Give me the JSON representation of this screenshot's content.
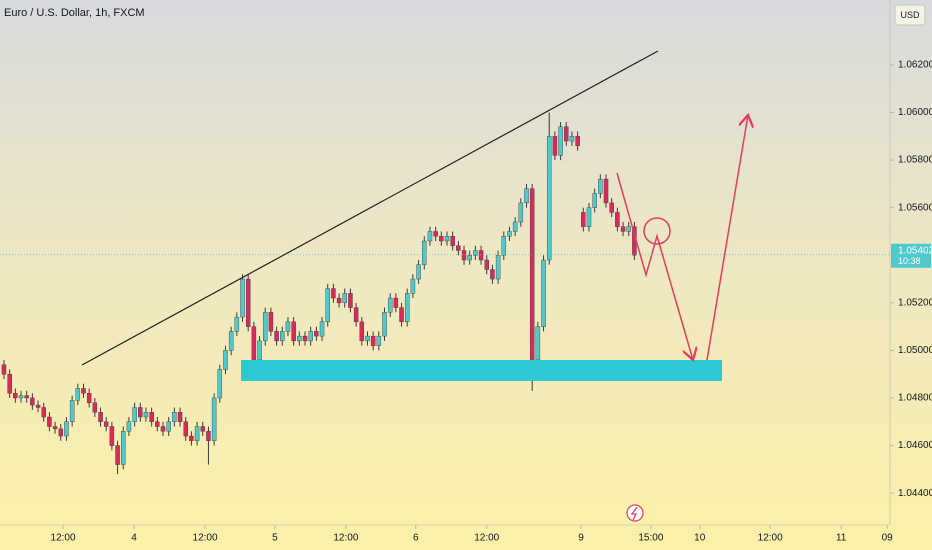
{
  "chart_data": {
    "type": "candlestick",
    "title": "Euro / U.S. Dollar, 1h, FXCM",
    "currency": "USD",
    "last_price": 1.05402,
    "countdown": "10:38",
    "up_color": "#4fc9cc",
    "down_color": "#d92a5e",
    "grid": false,
    "xlim": [
      -0.7,
      156
    ],
    "xticks": [
      {
        "value": 10.4,
        "label": "12:00"
      },
      {
        "value": 22.9,
        "label": "4"
      },
      {
        "value": 35.4,
        "label": "12:00"
      },
      {
        "value": 47.7,
        "label": "5"
      },
      {
        "value": 60.2,
        "label": "12:00"
      },
      {
        "value": 72.5,
        "label": "6"
      },
      {
        "value": 85,
        "label": "12:00"
      },
      {
        "value": 101.6,
        "label": "9"
      },
      {
        "value": 113.9,
        "label": "15:00"
      },
      {
        "value": 122.5,
        "label": "10"
      },
      {
        "value": 134.9,
        "label": "12:00"
      },
      {
        "value": 147.4,
        "label": "11"
      },
      {
        "value": 155.5,
        "label": "09"
      }
    ],
    "ylim": [
      1.04266,
      1.06473
    ],
    "yticks": [
      {
        "value": 1.062,
        "label": "1.06200"
      },
      {
        "value": 1.06,
        "label": "1.06000"
      },
      {
        "value": 1.058,
        "label": "1.05800"
      },
      {
        "value": 1.056,
        "label": "1.05600"
      },
      {
        "value": 1.052,
        "label": "1.05200"
      },
      {
        "value": 1.05,
        "label": "1.05000"
      },
      {
        "value": 1.048,
        "label": "1.04800"
      },
      {
        "value": 1.046,
        "label": "1.04600"
      },
      {
        "value": 1.044,
        "label": "1.04400"
      }
    ],
    "open": [
      1.0494,
      1.049,
      1.0482,
      1.048,
      1.0481,
      1.048,
      1.0477,
      1.0476,
      1.0472,
      1.0468,
      1.0467,
      1.0464,
      1.047,
      1.0479,
      1.0484,
      1.0482,
      1.0478,
      1.0474,
      1.047,
      1.0468,
      1.046,
      1.0452,
      1.0466,
      1.047,
      1.0476,
      1.0472,
      1.0474,
      1.047,
      1.0468,
      1.0466,
      1.047,
      1.0474,
      1.047,
      1.0464,
      1.0462,
      1.0468,
      1.0466,
      1.0462,
      1.048,
      1.0492,
      1.05,
      1.0508,
      1.0514,
      1.053,
      1.051,
      1.0496,
      1.0504,
      1.0516,
      1.0508,
      1.0504,
      1.0508,
      1.0512,
      1.0504,
      1.0506,
      1.0504,
      1.0508,
      1.0506,
      1.0512,
      1.0526,
      1.0522,
      1.052,
      1.0524,
      1.0518,
      1.0512,
      1.0504,
      1.0506,
      1.0502,
      1.0506,
      1.0516,
      1.0522,
      1.0518,
      1.0512,
      1.0524,
      1.053,
      1.0536,
      1.0546,
      1.055,
      1.0548,
      1.0546,
      1.0548,
      1.0544,
      1.0542,
      1.0538,
      1.054,
      1.0542,
      1.0538,
      1.0534,
      1.053,
      1.054,
      1.0548,
      1.055,
      1.0554,
      1.0562,
      1.0568,
      1.0496,
      1.051,
      1.0538,
      1.059,
      1.0582,
      1.0594,
      1.0588,
      1.059,
      1.0558,
      1.0552,
      1.056,
      1.0566,
      1.0572,
      1.0562,
      1.0558,
      1.0552,
      1.055,
      1.0552
    ],
    "high": [
      1.0496,
      1.0492,
      1.0484,
      1.0483,
      1.0483,
      1.0482,
      1.0479,
      1.0478,
      1.0474,
      1.047,
      1.0469,
      1.0472,
      1.0481,
      1.0486,
      1.0486,
      1.0484,
      1.048,
      1.0476,
      1.0472,
      1.047,
      1.0462,
      1.0468,
      1.0472,
      1.0478,
      1.0478,
      1.0476,
      1.0476,
      1.0472,
      1.047,
      1.0472,
      1.0476,
      1.0476,
      1.0472,
      1.0466,
      1.047,
      1.047,
      1.0468,
      1.0482,
      1.0494,
      1.0502,
      1.051,
      1.0516,
      1.0532,
      1.0532,
      1.0512,
      1.0506,
      1.0518,
      1.0518,
      1.051,
      1.051,
      1.0514,
      1.0514,
      1.0508,
      1.0508,
      1.051,
      1.051,
      1.0514,
      1.0528,
      1.0528,
      1.0524,
      1.0526,
      1.0526,
      1.052,
      1.0514,
      1.0508,
      1.0508,
      1.0508,
      1.0518,
      1.0524,
      1.0524,
      1.052,
      1.0526,
      1.0532,
      1.0538,
      1.0548,
      1.0552,
      1.0552,
      1.055,
      1.055,
      1.055,
      1.0546,
      1.0544,
      1.0542,
      1.0544,
      1.0544,
      1.054,
      1.0536,
      1.0542,
      1.055,
      1.0552,
      1.0556,
      1.0564,
      1.057,
      1.057,
      1.0512,
      1.054,
      1.06,
      1.0592,
      1.0596,
      1.0596,
      1.0592,
      1.0592,
      1.056,
      1.0562,
      1.0568,
      1.0574,
      1.0574,
      1.0564,
      1.056,
      1.0554,
      1.0554,
      1.0554
    ],
    "low": [
      1.0488,
      1.048,
      1.0478,
      1.0478,
      1.0478,
      1.0475,
      1.0474,
      1.047,
      1.0466,
      1.0465,
      1.0462,
      1.0462,
      1.0468,
      1.0477,
      1.048,
      1.0476,
      1.0472,
      1.0468,
      1.0466,
      1.0458,
      1.0448,
      1.045,
      1.0464,
      1.0468,
      1.047,
      1.047,
      1.0468,
      1.0466,
      1.0464,
      1.0464,
      1.0468,
      1.0468,
      1.0462,
      1.046,
      1.046,
      1.0464,
      1.0452,
      1.046,
      1.0478,
      1.049,
      1.0498,
      1.0506,
      1.0512,
      1.0508,
      1.0488,
      1.0494,
      1.0502,
      1.0506,
      1.0502,
      1.0502,
      1.0506,
      1.0502,
      1.0502,
      1.0502,
      1.0502,
      1.0504,
      1.0504,
      1.051,
      1.052,
      1.0518,
      1.0518,
      1.0516,
      1.051,
      1.0502,
      1.0502,
      1.05,
      1.05,
      1.0504,
      1.0514,
      1.0516,
      1.051,
      1.051,
      1.0522,
      1.0528,
      1.0534,
      1.0544,
      1.0546,
      1.0544,
      1.0544,
      1.0542,
      1.054,
      1.0536,
      1.0536,
      1.0538,
      1.0536,
      1.0532,
      1.0528,
      1.0528,
      1.0538,
      1.0546,
      1.0548,
      1.0552,
      1.056,
      1.0483,
      1.0494,
      1.0508,
      1.0536,
      1.058,
      1.058,
      1.0586,
      1.0586,
      1.0584,
      1.055,
      1.055,
      1.0558,
      1.0564,
      1.056,
      1.0556,
      1.055,
      1.0548,
      1.0548,
      1.0538
    ],
    "close": [
      1.049,
      1.0482,
      1.048,
      1.0481,
      1.048,
      1.0477,
      1.0476,
      1.0472,
      1.0468,
      1.0467,
      1.0464,
      1.047,
      1.0479,
      1.0484,
      1.0482,
      1.0478,
      1.0474,
      1.047,
      1.0468,
      1.046,
      1.0452,
      1.0466,
      1.047,
      1.0476,
      1.0472,
      1.0474,
      1.047,
      1.0468,
      1.0466,
      1.047,
      1.0474,
      1.047,
      1.0464,
      1.0462,
      1.0468,
      1.0466,
      1.0462,
      1.048,
      1.0492,
      1.05,
      1.0508,
      1.0514,
      1.053,
      1.051,
      1.0496,
      1.0504,
      1.0516,
      1.0508,
      1.0504,
      1.0508,
      1.0512,
      1.0504,
      1.0506,
      1.0504,
      1.0508,
      1.0506,
      1.0512,
      1.0526,
      1.0522,
      1.052,
      1.0524,
      1.0518,
      1.0512,
      1.0504,
      1.0506,
      1.0502,
      1.0506,
      1.0516,
      1.0522,
      1.0518,
      1.0512,
      1.0524,
      1.053,
      1.0536,
      1.0546,
      1.055,
      1.0548,
      1.0546,
      1.0548,
      1.0544,
      1.0542,
      1.0538,
      1.054,
      1.0542,
      1.0538,
      1.0534,
      1.053,
      1.054,
      1.0548,
      1.055,
      1.0554,
      1.0562,
      1.0568,
      1.0496,
      1.051,
      1.0538,
      1.059,
      1.0582,
      1.0594,
      1.0588,
      1.059,
      1.0586,
      1.0552,
      1.056,
      1.0566,
      1.0572,
      1.0562,
      1.0558,
      1.0552,
      1.055,
      1.0552,
      1.054
    ]
  }
}
